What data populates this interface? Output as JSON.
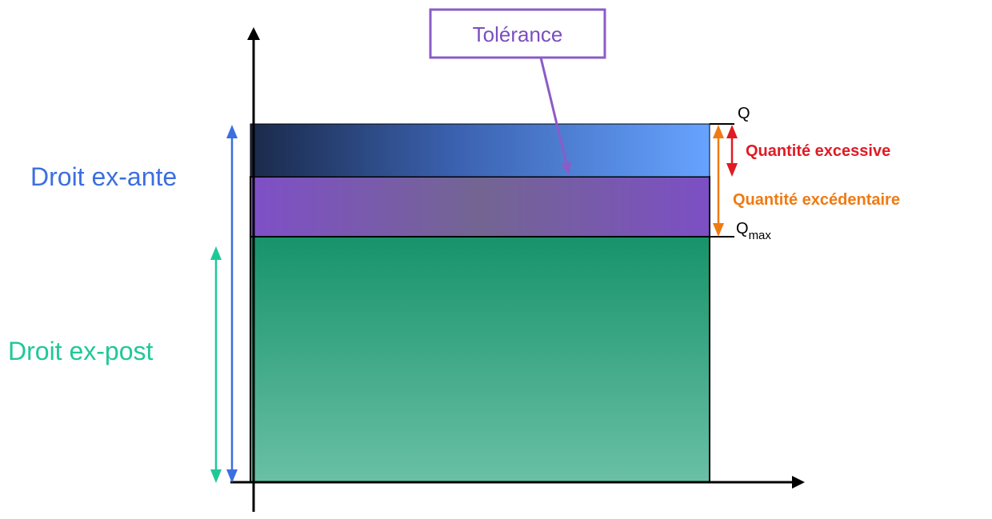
{
  "labels": {
    "tolerance": "Tolérance",
    "droit_ex_ante": "Droit ex-ante",
    "droit_ex_post": "Droit ex-post",
    "q": "Q",
    "q_max_base": "Q",
    "q_max_sub": "max",
    "quantite_excessive": "Quantité excessive",
    "quantite_excedentaire": "Quantité excédentaire"
  },
  "colors": {
    "tolerance_border": "#8b5cc7",
    "tolerance_text": "#7a4fbf",
    "ex_ante": "#3b6fe0",
    "ex_post": "#1fc897",
    "excessive": "#e01b24",
    "excedentaire": "#f07a12",
    "axis": "#000000",
    "top_band_start": "#1a2a4a",
    "top_band_end": "#66a3ff",
    "middle_band_start": "#7f4fc8",
    "middle_band_mid": "#736592",
    "bottom_band_top": "#17936a",
    "bottom_band_bottom": "#6ac0a5"
  }
}
